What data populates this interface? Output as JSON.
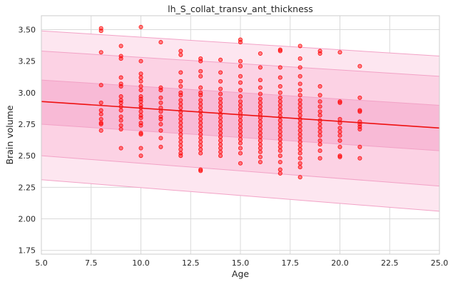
{
  "chart_data": {
    "type": "scatter",
    "title": "lh_S_collat_transv_ant_thickness",
    "xlabel": "Age",
    "ylabel": "Brain volume",
    "xlim": [
      5.0,
      25.0
    ],
    "ylim": [
      1.72,
      3.61
    ],
    "x_ticks": [
      5.0,
      7.5,
      10.0,
      12.5,
      15.0,
      17.5,
      20.0,
      22.5,
      25.0
    ],
    "x_tick_labels": [
      "5.0",
      "7.5",
      "10.0",
      "12.5",
      "15.0",
      "17.5",
      "20.0",
      "22.5",
      "25.0"
    ],
    "y_ticks": [
      1.75,
      2.0,
      2.25,
      2.5,
      2.75,
      3.0,
      3.25,
      3.5
    ],
    "y_tick_labels": [
      "1.75",
      "2.00",
      "2.25",
      "2.50",
      "2.75",
      "3.00",
      "3.25",
      "3.50"
    ],
    "grid": true,
    "colors": {
      "points": "#ff0000",
      "trend": "#ee1111",
      "band_outer": "#fde6f0",
      "band_middle": "#fcd2e4",
      "band_inner": "#f8bad6",
      "band_edge": "#f2a2c6",
      "grid": "#d9d9d9"
    },
    "trend_line": {
      "x": [
        5.0,
        25.0
      ],
      "y": [
        2.93,
        2.72
      ]
    },
    "bands": [
      {
        "name": "outer",
        "lower": [
          2.31,
          2.06
        ],
        "upper": [
          3.49,
          3.29
        ]
      },
      {
        "name": "middle",
        "lower": [
          2.5,
          2.26
        ],
        "upper": [
          3.33,
          3.13
        ]
      },
      {
        "name": "inner",
        "lower": [
          2.75,
          2.54
        ],
        "upper": [
          3.1,
          2.9
        ]
      }
    ],
    "points": [
      [
        8,
        3.51
      ],
      [
        8,
        3.49
      ],
      [
        8,
        3.32
      ],
      [
        8,
        3.06
      ],
      [
        8,
        2.92
      ],
      [
        8,
        2.86
      ],
      [
        8,
        2.83
      ],
      [
        8,
        2.79
      ],
      [
        8,
        2.76
      ],
      [
        8,
        2.75
      ],
      [
        8,
        2.7
      ],
      [
        9,
        3.37
      ],
      [
        9,
        3.29
      ],
      [
        9,
        3.27
      ],
      [
        9,
        3.12
      ],
      [
        9,
        3.07
      ],
      [
        9,
        3.05
      ],
      [
        9,
        2.97
      ],
      [
        9,
        2.94
      ],
      [
        9,
        2.92
      ],
      [
        9,
        2.89
      ],
      [
        9,
        2.86
      ],
      [
        9,
        2.81
      ],
      [
        9,
        2.78
      ],
      [
        9,
        2.74
      ],
      [
        9,
        2.71
      ],
      [
        9,
        2.56
      ],
      [
        10,
        3.52
      ],
      [
        10,
        3.25
      ],
      [
        10,
        3.15
      ],
      [
        10,
        3.12
      ],
      [
        10,
        3.09
      ],
      [
        10,
        3.05
      ],
      [
        10,
        3.02
      ],
      [
        10,
        2.97
      ],
      [
        10,
        2.95
      ],
      [
        10,
        2.93
      ],
      [
        10,
        2.9
      ],
      [
        10,
        2.88
      ],
      [
        10,
        2.85
      ],
      [
        10,
        2.82
      ],
      [
        10,
        2.8
      ],
      [
        10,
        2.76
      ],
      [
        10,
        2.74
      ],
      [
        10,
        2.68
      ],
      [
        10,
        2.67
      ],
      [
        10,
        2.56
      ],
      [
        10,
        2.5
      ],
      [
        11,
        3.4
      ],
      [
        11,
        3.04
      ],
      [
        11,
        3.02
      ],
      [
        11,
        2.96
      ],
      [
        11,
        2.92
      ],
      [
        11,
        2.88
      ],
      [
        11,
        2.85
      ],
      [
        11,
        2.81
      ],
      [
        11,
        2.79
      ],
      [
        11,
        2.75
      ],
      [
        11,
        2.7
      ],
      [
        11,
        2.64
      ],
      [
        11,
        2.57
      ],
      [
        12,
        3.33
      ],
      [
        12,
        3.3
      ],
      [
        12,
        3.16
      ],
      [
        12,
        3.09
      ],
      [
        12,
        3.05
      ],
      [
        12,
        3.0
      ],
      [
        12,
        2.98
      ],
      [
        12,
        2.94
      ],
      [
        12,
        2.91
      ],
      [
        12,
        2.88
      ],
      [
        12,
        2.85
      ],
      [
        12,
        2.82
      ],
      [
        12,
        2.79
      ],
      [
        12,
        2.76
      ],
      [
        12,
        2.73
      ],
      [
        12,
        2.7
      ],
      [
        12,
        2.67
      ],
      [
        12,
        2.64
      ],
      [
        12,
        2.61
      ],
      [
        12,
        2.58
      ],
      [
        12,
        2.55
      ],
      [
        12,
        2.52
      ],
      [
        12,
        2.5
      ],
      [
        13,
        3.27
      ],
      [
        13,
        3.25
      ],
      [
        13,
        3.17
      ],
      [
        13,
        3.13
      ],
      [
        13,
        3.04
      ],
      [
        13,
        3.0
      ],
      [
        13,
        2.98
      ],
      [
        13,
        2.94
      ],
      [
        13,
        2.91
      ],
      [
        13,
        2.88
      ],
      [
        13,
        2.85
      ],
      [
        13,
        2.82
      ],
      [
        13,
        2.79
      ],
      [
        13,
        2.76
      ],
      [
        13,
        2.73
      ],
      [
        13,
        2.7
      ],
      [
        13,
        2.67
      ],
      [
        13,
        2.64
      ],
      [
        13,
        2.61
      ],
      [
        13,
        2.58
      ],
      [
        13,
        2.55
      ],
      [
        13,
        2.52
      ],
      [
        13,
        2.39
      ],
      [
        13,
        2.38
      ],
      [
        14,
        3.26
      ],
      [
        14,
        3.16
      ],
      [
        14,
        3.09
      ],
      [
        14,
        3.03
      ],
      [
        14,
        2.99
      ],
      [
        14,
        2.95
      ],
      [
        14,
        2.92
      ],
      [
        14,
        2.89
      ],
      [
        14,
        2.86
      ],
      [
        14,
        2.83
      ],
      [
        14,
        2.8
      ],
      [
        14,
        2.77
      ],
      [
        14,
        2.74
      ],
      [
        14,
        2.71
      ],
      [
        14,
        2.68
      ],
      [
        14,
        2.65
      ],
      [
        14,
        2.62
      ],
      [
        14,
        2.59
      ],
      [
        14,
        2.56
      ],
      [
        14,
        2.53
      ],
      [
        14,
        2.5
      ],
      [
        15,
        3.42
      ],
      [
        15,
        3.4
      ],
      [
        15,
        3.25
      ],
      [
        15,
        3.21
      ],
      [
        15,
        3.13
      ],
      [
        15,
        3.08
      ],
      [
        15,
        3.02
      ],
      [
        15,
        2.97
      ],
      [
        15,
        2.93
      ],
      [
        15,
        2.9
      ],
      [
        15,
        2.87
      ],
      [
        15,
        2.84
      ],
      [
        15,
        2.81
      ],
      [
        15,
        2.78
      ],
      [
        15,
        2.75
      ],
      [
        15,
        2.72
      ],
      [
        15,
        2.69
      ],
      [
        15,
        2.66
      ],
      [
        15,
        2.63
      ],
      [
        15,
        2.6
      ],
      [
        15,
        2.56
      ],
      [
        15,
        2.52
      ],
      [
        15,
        2.44
      ],
      [
        16,
        3.31
      ],
      [
        16,
        3.2
      ],
      [
        16,
        3.1
      ],
      [
        16,
        3.04
      ],
      [
        16,
        2.99
      ],
      [
        16,
        2.95
      ],
      [
        16,
        2.92
      ],
      [
        16,
        2.89
      ],
      [
        16,
        2.86
      ],
      [
        16,
        2.83
      ],
      [
        16,
        2.8
      ],
      [
        16,
        2.77
      ],
      [
        16,
        2.74
      ],
      [
        16,
        2.71
      ],
      [
        16,
        2.68
      ],
      [
        16,
        2.65
      ],
      [
        16,
        2.62
      ],
      [
        16,
        2.59
      ],
      [
        16,
        2.56
      ],
      [
        16,
        2.53
      ],
      [
        16,
        2.49
      ],
      [
        16,
        2.45
      ],
      [
        17,
        3.34
      ],
      [
        17,
        3.33
      ],
      [
        17,
        3.2
      ],
      [
        17,
        3.12
      ],
      [
        17,
        3.05
      ],
      [
        17,
        3.0
      ],
      [
        17,
        2.96
      ],
      [
        17,
        2.93
      ],
      [
        17,
        2.9
      ],
      [
        17,
        2.87
      ],
      [
        17,
        2.84
      ],
      [
        17,
        2.81
      ],
      [
        17,
        2.78
      ],
      [
        17,
        2.75
      ],
      [
        17,
        2.72
      ],
      [
        17,
        2.69
      ],
      [
        17,
        2.66
      ],
      [
        17,
        2.63
      ],
      [
        17,
        2.6
      ],
      [
        17,
        2.57
      ],
      [
        17,
        2.54
      ],
      [
        17,
        2.5
      ],
      [
        17,
        2.45
      ],
      [
        17,
        2.39
      ],
      [
        17,
        2.36
      ],
      [
        18,
        3.37
      ],
      [
        18,
        3.27
      ],
      [
        18,
        3.2
      ],
      [
        18,
        3.13
      ],
      [
        18,
        3.07
      ],
      [
        18,
        3.02
      ],
      [
        18,
        2.98
      ],
      [
        18,
        2.94
      ],
      [
        18,
        2.91
      ],
      [
        18,
        2.88
      ],
      [
        18,
        2.85
      ],
      [
        18,
        2.82
      ],
      [
        18,
        2.79
      ],
      [
        18,
        2.76
      ],
      [
        18,
        2.73
      ],
      [
        18,
        2.7
      ],
      [
        18,
        2.67
      ],
      [
        18,
        2.64
      ],
      [
        18,
        2.61
      ],
      [
        18,
        2.58
      ],
      [
        18,
        2.55
      ],
      [
        18,
        2.52
      ],
      [
        18,
        2.48
      ],
      [
        18,
        2.44
      ],
      [
        18,
        2.41
      ],
      [
        18,
        2.33
      ],
      [
        19,
        3.33
      ],
      [
        19,
        3.31
      ],
      [
        19,
        3.05
      ],
      [
        19,
        2.98
      ],
      [
        19,
        2.93
      ],
      [
        19,
        2.89
      ],
      [
        19,
        2.85
      ],
      [
        19,
        2.82
      ],
      [
        19,
        2.78
      ],
      [
        19,
        2.75
      ],
      [
        19,
        2.72
      ],
      [
        19,
        2.69
      ],
      [
        19,
        2.66
      ],
      [
        19,
        2.62
      ],
      [
        19,
        2.59
      ],
      [
        19,
        2.54
      ],
      [
        19,
        2.48
      ],
      [
        20,
        3.32
      ],
      [
        20,
        2.93
      ],
      [
        20,
        2.92
      ],
      [
        20,
        2.79
      ],
      [
        20,
        2.76
      ],
      [
        20,
        2.72
      ],
      [
        20,
        2.69
      ],
      [
        20,
        2.66
      ],
      [
        20,
        2.62
      ],
      [
        20,
        2.57
      ],
      [
        20,
        2.5
      ],
      [
        20,
        2.49
      ],
      [
        21,
        3.21
      ],
      [
        21,
        2.96
      ],
      [
        21,
        2.86
      ],
      [
        21,
        2.85
      ],
      [
        21,
        2.77
      ],
      [
        21,
        2.75
      ],
      [
        21,
        2.73
      ],
      [
        21,
        2.71
      ],
      [
        21,
        2.57
      ],
      [
        21,
        2.48
      ]
    ]
  }
}
